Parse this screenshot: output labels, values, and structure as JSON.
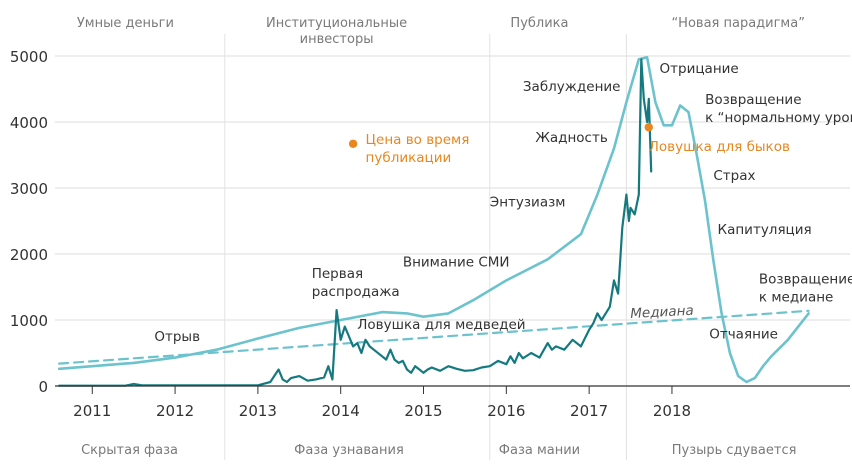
{
  "chart_data": {
    "type": "line",
    "title": "",
    "xlabel": "",
    "ylabel": "",
    "xlim": [
      2010.55,
      2020.15
    ],
    "ylim": [
      0,
      5100
    ],
    "y_ticks": [
      0,
      1000,
      2000,
      3000,
      4000,
      5000
    ],
    "x_ticks": [
      {
        "label": "2011",
        "value": 2011.0
      },
      {
        "label": "2012",
        "value": 2012.0
      },
      {
        "label": "2013",
        "value": 2013.0
      },
      {
        "label": "2014",
        "value": 2014.0
      },
      {
        "label": "2015",
        "value": 2015.0
      },
      {
        "label": "2016",
        "value": 2016.0
      },
      {
        "label": "2017",
        "value": 2017.0
      },
      {
        "label": "2018",
        "value": 2018.0
      }
    ],
    "colors": {
      "price": "#157a80",
      "bubble": "#6cc3cd",
      "median": "#6cc3cd",
      "accent": "#e8871e",
      "grid": "#dddddd",
      "axis": "#333333"
    },
    "top_phases": [
      {
        "lines": [
          "Умные деньги"
        ],
        "x": 2011.4
      },
      {
        "lines": [
          "Институциональные",
          "инвесторы"
        ],
        "x": 2013.95
      },
      {
        "lines": [
          "Публика"
        ],
        "x": 2016.4
      },
      {
        "lines": [
          "“Новая парадигма”"
        ],
        "x": 2018.8
      }
    ],
    "bottom_phases": [
      {
        "label": "Скрытая фаза",
        "x": 2011.45
      },
      {
        "label": "Фаза узнавания",
        "x": 2014.1
      },
      {
        "label": "Фаза мании",
        "x": 2016.4
      },
      {
        "label": "Пузырь сдувается",
        "x": 2018.75
      }
    ],
    "phase_dividers": [
      2012.6,
      2015.8,
      2017.45
    ],
    "series": [
      {
        "key": "price",
        "style": "solid",
        "x": [
          2010.6,
          2011.0,
          2011.4,
          2011.5,
          2011.6,
          2012.0,
          2012.5,
          2013.0,
          2013.15,
          2013.25,
          2013.3,
          2013.35,
          2013.4,
          2013.5,
          2013.6,
          2013.7,
          2013.8,
          2013.85,
          2013.9,
          2013.95,
          2014.0,
          2014.05,
          2014.1,
          2014.15,
          2014.2,
          2014.25,
          2014.3,
          2014.35,
          2014.4,
          2014.5,
          2014.55,
          2014.6,
          2014.65,
          2014.7,
          2014.75,
          2014.8,
          2014.85,
          2014.9,
          2014.95,
          2015.0,
          2015.05,
          2015.1,
          2015.2,
          2015.3,
          2015.4,
          2015.5,
          2015.6,
          2015.7,
          2015.8,
          2015.9,
          2016.0,
          2016.05,
          2016.1,
          2016.15,
          2016.2,
          2016.3,
          2016.4,
          2016.5,
          2016.55,
          2016.6,
          2016.7,
          2016.8,
          2016.9,
          2017.0,
          2017.05,
          2017.1,
          2017.15,
          2017.2,
          2017.25,
          2017.3,
          2017.35,
          2017.4,
          2017.45,
          2017.48,
          2017.5,
          2017.55,
          2017.6,
          2017.63,
          2017.66,
          2017.7,
          2017.72,
          2017.75
        ],
        "y": [
          5,
          5,
          5,
          30,
          10,
          10,
          10,
          10,
          60,
          250,
          100,
          60,
          120,
          150,
          80,
          100,
          130,
          300,
          100,
          1150,
          700,
          900,
          750,
          600,
          650,
          500,
          700,
          600,
          550,
          450,
          400,
          550,
          400,
          350,
          380,
          250,
          200,
          300,
          250,
          200,
          250,
          280,
          230,
          300,
          260,
          230,
          240,
          280,
          300,
          380,
          330,
          450,
          350,
          500,
          420,
          500,
          430,
          650,
          550,
          600,
          550,
          700,
          600,
          850,
          950,
          1100,
          1000,
          1100,
          1200,
          1600,
          1400,
          2400,
          2900,
          2500,
          2700,
          2600,
          2900,
          4950,
          4350,
          4000,
          4350,
          3250
        ]
      },
      {
        "key": "bubble",
        "style": "solid",
        "x": [
          2010.6,
          2011.0,
          2011.5,
          2012.0,
          2012.5,
          2013.0,
          2013.5,
          2014.0,
          2014.5,
          2014.8,
          2015.0,
          2015.3,
          2015.6,
          2016.0,
          2016.5,
          2016.9,
          2017.1,
          2017.3,
          2017.45,
          2017.6,
          2017.7,
          2017.8,
          2017.9,
          2018.0,
          2018.1,
          2018.2,
          2018.3,
          2018.4,
          2018.5,
          2018.6,
          2018.7,
          2018.8,
          2018.9,
          2019.0,
          2019.1,
          2019.2,
          2019.4,
          2019.65
        ],
        "y": [
          260,
          300,
          350,
          430,
          550,
          720,
          880,
          1000,
          1120,
          1100,
          1050,
          1100,
          1300,
          1600,
          1920,
          2300,
          2900,
          3600,
          4300,
          4950,
          4980,
          4300,
          3950,
          3950,
          4250,
          4150,
          3500,
          2800,
          1900,
          1100,
          500,
          150,
          60,
          120,
          300,
          450,
          700,
          1100
        ]
      },
      {
        "key": "median",
        "style": "dashed",
        "x": [
          2010.6,
          2019.65
        ],
        "y": [
          340,
          1140
        ]
      }
    ],
    "markers": [
      {
        "key": "now",
        "x": 2017.72,
        "y": 3920
      },
      {
        "key": "legend_dot",
        "x": 2014.15,
        "y": 3670
      }
    ],
    "annotations": [
      {
        "lines": [
          "Цена во время",
          "публикации"
        ],
        "x": 2014.3,
        "y": 3670,
        "style": "accent"
      },
      {
        "lines": [
          "Ловушка для быков"
        ],
        "x": 2017.72,
        "y": 3560,
        "style": "accent"
      },
      {
        "lines": [
          "Заблуждение"
        ],
        "x": 2016.2,
        "y": 4470,
        "style": "normal"
      },
      {
        "lines": [
          "Жадность"
        ],
        "x": 2016.35,
        "y": 3700,
        "style": "normal"
      },
      {
        "lines": [
          "Энтузиазм"
        ],
        "x": 2015.8,
        "y": 2720,
        "style": "normal"
      },
      {
        "lines": [
          "Внимание СМИ"
        ],
        "x": 2014.75,
        "y": 1810,
        "style": "normal"
      },
      {
        "lines": [
          "Первая",
          "распродажа"
        ],
        "x": 2013.65,
        "y": 1640,
        "style": "normal"
      },
      {
        "lines": [
          "Ловушка для медведей"
        ],
        "x": 2014.2,
        "y": 860,
        "style": "normal"
      },
      {
        "lines": [
          "Отрыв"
        ],
        "x": 2011.75,
        "y": 680,
        "style": "normal"
      },
      {
        "lines": [
          "Отрицание"
        ],
        "x": 2017.85,
        "y": 4740,
        "style": "normal"
      },
      {
        "lines": [
          "Возвращение",
          "к “нормальному уровню”"
        ],
        "x": 2018.4,
        "y": 4270,
        "style": "normal"
      },
      {
        "lines": [
          "Страх"
        ],
        "x": 2018.5,
        "y": 3120,
        "style": "normal"
      },
      {
        "lines": [
          "Капитуляция"
        ],
        "x": 2018.55,
        "y": 2300,
        "style": "normal"
      },
      {
        "lines": [
          "Медиана"
        ],
        "x": 2017.5,
        "y": 1030,
        "style": "median"
      },
      {
        "lines": [
          "Возвращение",
          "к медиане"
        ],
        "x": 2019.05,
        "y": 1550,
        "style": "normal"
      },
      {
        "lines": [
          "Отчаяние"
        ],
        "x": 2018.45,
        "y": 720,
        "style": "normal"
      }
    ]
  }
}
